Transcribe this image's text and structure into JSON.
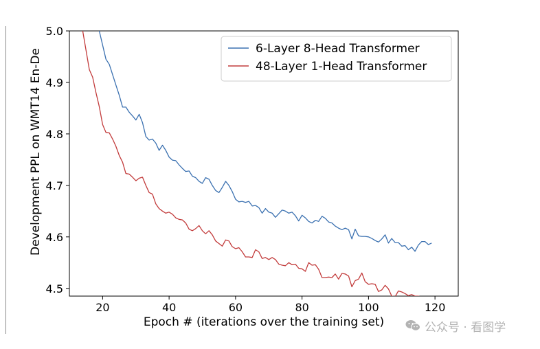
{
  "chart_data": {
    "type": "line",
    "title": "",
    "xlabel": "Epoch # (iterations over the training set)",
    "ylabel": "Development PPL on WMT14 En-De",
    "xlim": [
      10,
      127
    ],
    "ylim": [
      4.485,
      5.0
    ],
    "xticks": [
      "20",
      "40",
      "60",
      "80",
      "100",
      "120"
    ],
    "yticks": [
      "4.5",
      "4.6",
      "4.7",
      "4.8",
      "4.9",
      "5.0"
    ],
    "grid": false,
    "legend_position": "top-right",
    "series": [
      {
        "name": "6-Layer 8-Head Transformer",
        "color": "#3a70b0",
        "points": [
          [
            19,
            5.0
          ],
          [
            21,
            4.945
          ],
          [
            22,
            4.935
          ],
          [
            23,
            4.915
          ],
          [
            24,
            4.895
          ],
          [
            25,
            4.875
          ],
          [
            26,
            4.852
          ],
          [
            27,
            4.852
          ],
          [
            28,
            4.842
          ],
          [
            29,
            4.835
          ],
          [
            30,
            4.827
          ],
          [
            31,
            4.838
          ],
          [
            32,
            4.822
          ],
          [
            33,
            4.795
          ],
          [
            34,
            4.788
          ],
          [
            35,
            4.79
          ],
          [
            36,
            4.782
          ],
          [
            37,
            4.768
          ],
          [
            38,
            4.778
          ],
          [
            39,
            4.768
          ],
          [
            40,
            4.755
          ],
          [
            41,
            4.749
          ],
          [
            42,
            4.748
          ],
          [
            43,
            4.74
          ],
          [
            44,
            4.733
          ],
          [
            45,
            4.727
          ],
          [
            46,
            4.728
          ],
          [
            47,
            4.718
          ],
          [
            48,
            4.715
          ],
          [
            49,
            4.708
          ],
          [
            50,
            4.704
          ],
          [
            51,
            4.715
          ],
          [
            52,
            4.712
          ],
          [
            53,
            4.7
          ],
          [
            54,
            4.69
          ],
          [
            55,
            4.686
          ],
          [
            56,
            4.696
          ],
          [
            57,
            4.708
          ],
          [
            58,
            4.7
          ],
          [
            59,
            4.688
          ],
          [
            60,
            4.673
          ],
          [
            61,
            4.668
          ],
          [
            62,
            4.669
          ],
          [
            63,
            4.667
          ],
          [
            64,
            4.669
          ],
          [
            65,
            4.66
          ],
          [
            66,
            4.661
          ],
          [
            67,
            4.657
          ],
          [
            68,
            4.646
          ],
          [
            69,
            4.655
          ],
          [
            70,
            4.648
          ],
          [
            71,
            4.646
          ],
          [
            72,
            4.638
          ],
          [
            73,
            4.645
          ],
          [
            74,
            4.652
          ],
          [
            75,
            4.65
          ],
          [
            76,
            4.646
          ],
          [
            77,
            4.648
          ],
          [
            78,
            4.641
          ],
          [
            79,
            4.631
          ],
          [
            80,
            4.642
          ],
          [
            81,
            4.637
          ],
          [
            82,
            4.63
          ],
          [
            83,
            4.627
          ],
          [
            84,
            4.632
          ],
          [
            85,
            4.63
          ],
          [
            86,
            4.64
          ],
          [
            87,
            4.636
          ],
          [
            88,
            4.629
          ],
          [
            89,
            4.627
          ],
          [
            90,
            4.621
          ],
          [
            91,
            4.617
          ],
          [
            92,
            4.614
          ],
          [
            93,
            4.617
          ],
          [
            94,
            4.614
          ],
          [
            95,
            4.596
          ],
          [
            96,
            4.615
          ],
          [
            97,
            4.602
          ],
          [
            98,
            4.601
          ],
          [
            99,
            4.601
          ],
          [
            100,
            4.6
          ],
          [
            101,
            4.597
          ],
          [
            102,
            4.593
          ],
          [
            103,
            4.59
          ],
          [
            104,
            4.596
          ],
          [
            105,
            4.604
          ],
          [
            106,
            4.588
          ],
          [
            107,
            4.597
          ],
          [
            108,
            4.589
          ],
          [
            109,
            4.589
          ],
          [
            110,
            4.582
          ],
          [
            111,
            4.583
          ],
          [
            112,
            4.575
          ],
          [
            113,
            4.58
          ],
          [
            114,
            4.572
          ],
          [
            115,
            4.584
          ],
          [
            116,
            4.591
          ],
          [
            117,
            4.591
          ],
          [
            118,
            4.585
          ],
          [
            119,
            4.588
          ]
        ]
      },
      {
        "name": "48-Layer 1-Head Transformer",
        "color": "#c23b3b",
        "points": [
          [
            14,
            5.0
          ],
          [
            16,
            4.925
          ],
          [
            17,
            4.91
          ],
          [
            18,
            4.88
          ],
          [
            19,
            4.853
          ],
          [
            20,
            4.818
          ],
          [
            21,
            4.803
          ],
          [
            22,
            4.802
          ],
          [
            23,
            4.79
          ],
          [
            24,
            4.776
          ],
          [
            25,
            4.758
          ],
          [
            26,
            4.745
          ],
          [
            27,
            4.723
          ],
          [
            28,
            4.722
          ],
          [
            29,
            4.716
          ],
          [
            30,
            4.709
          ],
          [
            31,
            4.714
          ],
          [
            32,
            4.716
          ],
          [
            33,
            4.7
          ],
          [
            34,
            4.686
          ],
          [
            35,
            4.683
          ],
          [
            36,
            4.664
          ],
          [
            37,
            4.655
          ],
          [
            38,
            4.65
          ],
          [
            39,
            4.646
          ],
          [
            40,
            4.648
          ],
          [
            41,
            4.644
          ],
          [
            42,
            4.637
          ],
          [
            43,
            4.634
          ],
          [
            44,
            4.633
          ],
          [
            45,
            4.627
          ],
          [
            46,
            4.615
          ],
          [
            47,
            4.612
          ],
          [
            48,
            4.616
          ],
          [
            49,
            4.622
          ],
          [
            50,
            4.612
          ],
          [
            51,
            4.606
          ],
          [
            52,
            4.612
          ],
          [
            53,
            4.604
          ],
          [
            54,
            4.592
          ],
          [
            55,
            4.587
          ],
          [
            56,
            4.582
          ],
          [
            57,
            4.594
          ],
          [
            58,
            4.592
          ],
          [
            59,
            4.581
          ],
          [
            60,
            4.577
          ],
          [
            61,
            4.579
          ],
          [
            62,
            4.571
          ],
          [
            63,
            4.561
          ],
          [
            64,
            4.561
          ],
          [
            65,
            4.56
          ],
          [
            66,
            4.575
          ],
          [
            67,
            4.571
          ],
          [
            68,
            4.558
          ],
          [
            69,
            4.56
          ],
          [
            70,
            4.556
          ],
          [
            71,
            4.56
          ],
          [
            72,
            4.556
          ],
          [
            73,
            4.547
          ],
          [
            74,
            4.545
          ],
          [
            75,
            4.544
          ],
          [
            76,
            4.55
          ],
          [
            77,
            4.546
          ],
          [
            78,
            4.547
          ],
          [
            79,
            4.539
          ],
          [
            80,
            4.538
          ],
          [
            81,
            4.533
          ],
          [
            82,
            4.55
          ],
          [
            83,
            4.545
          ],
          [
            84,
            4.546
          ],
          [
            85,
            4.537
          ],
          [
            86,
            4.521
          ],
          [
            87,
            4.521
          ],
          [
            88,
            4.522
          ],
          [
            89,
            4.521
          ],
          [
            90,
            4.528
          ],
          [
            91,
            4.518
          ],
          [
            92,
            4.529
          ],
          [
            93,
            4.528
          ],
          [
            94,
            4.524
          ],
          [
            95,
            4.503
          ],
          [
            96,
            4.515
          ],
          [
            97,
            4.518
          ],
          [
            98,
            4.53
          ],
          [
            99,
            4.513
          ],
          [
            100,
            4.508
          ],
          [
            101,
            4.509
          ],
          [
            102,
            4.508
          ],
          [
            103,
            4.494
          ],
          [
            104,
            4.497
          ],
          [
            105,
            4.506
          ],
          [
            106,
            4.499
          ],
          [
            107,
            4.485
          ],
          [
            108,
            4.484
          ],
          [
            109,
            4.495
          ],
          [
            110,
            4.493
          ],
          [
            111,
            4.49
          ],
          [
            112,
            4.486
          ],
          [
            113,
            4.488
          ],
          [
            114,
            4.485
          ],
          [
            115,
            4.485
          ],
          [
            116,
            4.483
          ],
          [
            117,
            4.484
          ],
          [
            118,
            4.481
          ],
          [
            119,
            4.479
          ],
          [
            120,
            4.476
          ],
          [
            121,
            4.483
          ]
        ]
      }
    ]
  },
  "watermark": {
    "text": "公众号 · 看图学",
    "icon": "wechat-icon",
    "color": "#b3b3b3"
  }
}
